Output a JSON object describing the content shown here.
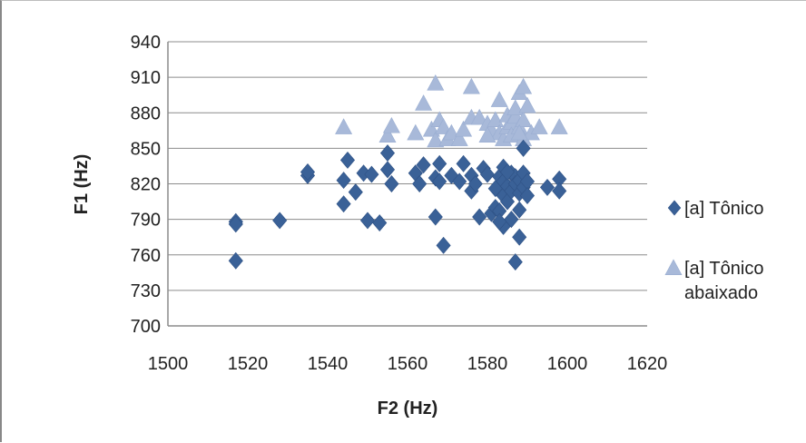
{
  "chart_data": {
    "type": "scatter",
    "title": "",
    "xlabel": "F2 (Hz)",
    "ylabel": "F1 (Hz)",
    "xlim": [
      1500,
      1620
    ],
    "ylim": [
      700,
      940
    ],
    "x_ticks": [
      "1500",
      "1520",
      "1540",
      "1560",
      "1580",
      "1600",
      "1620"
    ],
    "y_ticks": [
      "940",
      "910",
      "880",
      "850",
      "820",
      "790",
      "760",
      "730",
      "700"
    ],
    "grid": "horizontal",
    "legend_position": "right",
    "series": [
      {
        "name": "[a] Tônico",
        "marker": "diamond",
        "color": "#3a6197",
        "points": [
          [
            1517,
            788
          ],
          [
            1517,
            786
          ],
          [
            1517,
            755
          ],
          [
            1528,
            789
          ],
          [
            1535,
            827
          ],
          [
            1535,
            830
          ],
          [
            1544,
            823
          ],
          [
            1544,
            803
          ],
          [
            1545,
            840
          ],
          [
            1547,
            813
          ],
          [
            1549,
            829
          ],
          [
            1550,
            789
          ],
          [
            1551,
            828
          ],
          [
            1553,
            787
          ],
          [
            1555,
            846
          ],
          [
            1555,
            832
          ],
          [
            1556,
            820
          ],
          [
            1562,
            829
          ],
          [
            1563,
            820
          ],
          [
            1564,
            836
          ],
          [
            1567,
            825
          ],
          [
            1567,
            792
          ],
          [
            1568,
            837
          ],
          [
            1568,
            822
          ],
          [
            1569,
            768
          ],
          [
            1571,
            827
          ],
          [
            1573,
            822
          ],
          [
            1574,
            837
          ],
          [
            1576,
            827
          ],
          [
            1576,
            814
          ],
          [
            1577,
            820
          ],
          [
            1578,
            792
          ],
          [
            1579,
            833
          ],
          [
            1580,
            828
          ],
          [
            1581,
            795
          ],
          [
            1582,
            816
          ],
          [
            1582,
            800
          ],
          [
            1583,
            826
          ],
          [
            1583,
            797
          ],
          [
            1584,
            834
          ],
          [
            1584,
            822
          ],
          [
            1584,
            810
          ],
          [
            1584,
            784
          ],
          [
            1585,
            818
          ],
          [
            1585,
            805
          ],
          [
            1586,
            829
          ],
          [
            1586,
            814
          ],
          [
            1586,
            790
          ],
          [
            1587,
            826
          ],
          [
            1587,
            820
          ],
          [
            1587,
            754
          ],
          [
            1588,
            823
          ],
          [
            1588,
            812
          ],
          [
            1588,
            798
          ],
          [
            1588,
            775
          ],
          [
            1589,
            829
          ],
          [
            1589,
            817
          ],
          [
            1589,
            850
          ],
          [
            1590,
            822
          ],
          [
            1590,
            810
          ],
          [
            1595,
            817
          ],
          [
            1598,
            824
          ],
          [
            1598,
            814
          ],
          [
            1583,
            788
          ],
          [
            1585,
            830
          ]
        ]
      },
      {
        "name": "[a] Tônico abaixado",
        "marker": "triangle",
        "color": "#a8b9d9",
        "points": [
          [
            1544,
            868
          ],
          [
            1555,
            861
          ],
          [
            1556,
            869
          ],
          [
            1562,
            863
          ],
          [
            1564,
            888
          ],
          [
            1566,
            866
          ],
          [
            1567,
            857
          ],
          [
            1567,
            905
          ],
          [
            1568,
            874
          ],
          [
            1569,
            868
          ],
          [
            1570,
            858
          ],
          [
            1571,
            863
          ],
          [
            1573,
            858
          ],
          [
            1574,
            866
          ],
          [
            1576,
            876
          ],
          [
            1576,
            902
          ],
          [
            1578,
            876
          ],
          [
            1580,
            871
          ],
          [
            1581,
            866
          ],
          [
            1582,
            874
          ],
          [
            1583,
            863
          ],
          [
            1583,
            891
          ],
          [
            1584,
            858
          ],
          [
            1585,
            868
          ],
          [
            1585,
            878
          ],
          [
            1586,
            872
          ],
          [
            1586,
            861
          ],
          [
            1587,
            877
          ],
          [
            1587,
            884
          ],
          [
            1588,
            897
          ],
          [
            1588,
            868
          ],
          [
            1589,
            902
          ],
          [
            1589,
            874
          ],
          [
            1589,
            858
          ],
          [
            1590,
            886
          ],
          [
            1591,
            863
          ],
          [
            1593,
            868
          ],
          [
            1598,
            868
          ],
          [
            1580,
            861
          ],
          [
            1588,
            863
          ]
        ]
      }
    ]
  }
}
